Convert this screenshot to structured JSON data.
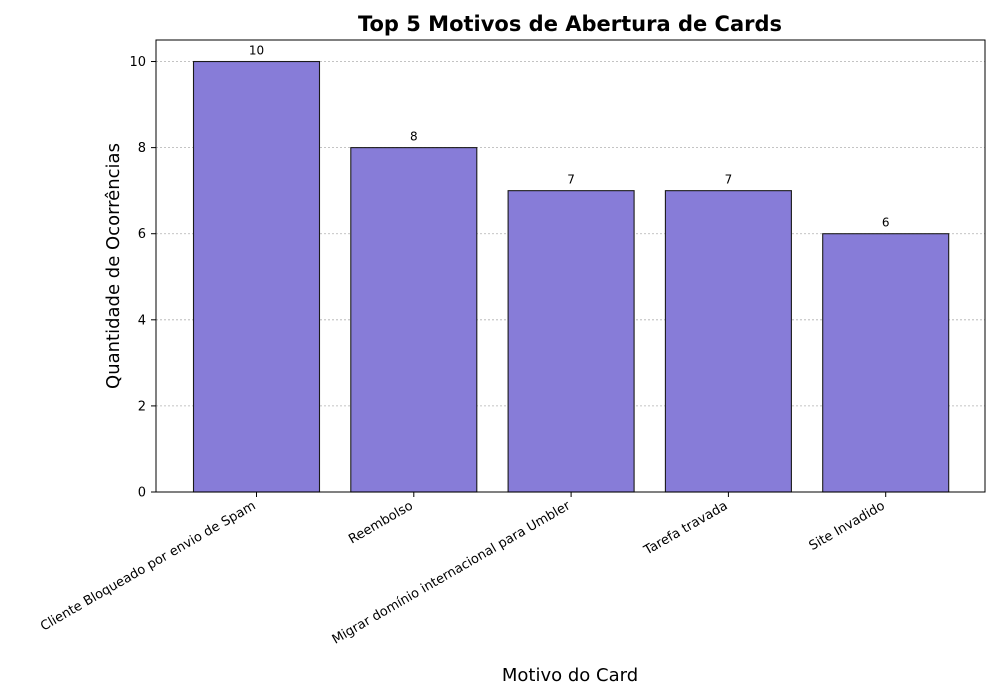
{
  "chart_data": {
    "type": "bar",
    "title": "Top 5 Motivos de Abertura de Cards",
    "xlabel": "Motivo do Card",
    "ylabel": "Quantidade de Ocorrências",
    "categories": [
      "Cliente Bloqueado por envio de Spam",
      "Reembolso",
      "Migrar domínio internacional para Umbler",
      "Tarefa travada",
      "Site Invadido"
    ],
    "values": [
      10,
      8,
      7,
      7,
      6
    ],
    "data_labels": [
      "10",
      "8",
      "7",
      "7",
      "6"
    ],
    "yticks": [
      0,
      2,
      4,
      6,
      8,
      10
    ],
    "ylim": [
      0,
      10.5
    ],
    "grid": "y-dotted",
    "bar_color": "#877cd8",
    "edge_color": "#1a1a1a"
  }
}
